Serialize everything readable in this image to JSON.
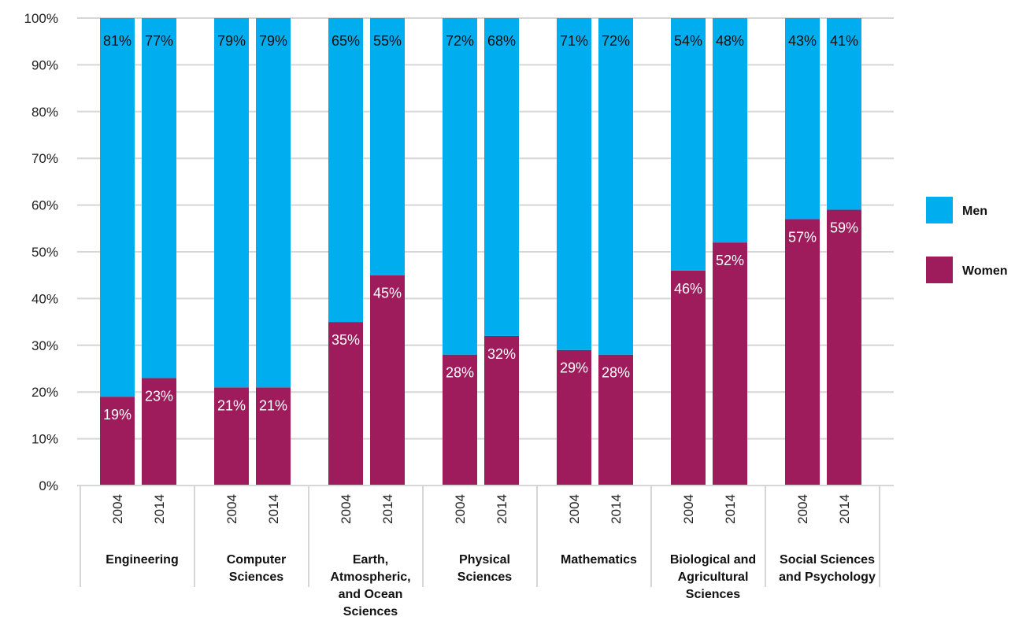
{
  "chart_data": {
    "type": "bar",
    "stacked": true,
    "normalized": true,
    "title": "",
    "xlabel": "",
    "ylabel": "",
    "ylim": [
      0,
      100
    ],
    "y_ticks": [
      "0%",
      "10%",
      "20%",
      "30%",
      "40%",
      "50%",
      "60%",
      "70%",
      "80%",
      "90%",
      "100%"
    ],
    "grid": "horizontal",
    "legend": {
      "position": "right",
      "entries": [
        {
          "name": "Men",
          "color": "#00aeef"
        },
        {
          "name": "Women",
          "color": "#9e1c5c"
        }
      ]
    },
    "groups": [
      {
        "name_lines": [
          "Engineering"
        ],
        "years": [
          "2004",
          "2014"
        ]
      },
      {
        "name_lines": [
          "Computer",
          "Sciences"
        ],
        "years": [
          "2004",
          "2014"
        ]
      },
      {
        "name_lines": [
          "Earth,",
          "Atmospheric,",
          "and Ocean",
          "Sciences"
        ],
        "years": [
          "2004",
          "2014"
        ]
      },
      {
        "name_lines": [
          "Physical",
          "Sciences"
        ],
        "years": [
          "2004",
          "2014"
        ]
      },
      {
        "name_lines": [
          "Mathematics"
        ],
        "years": [
          "2004",
          "2014"
        ]
      },
      {
        "name_lines": [
          "Biological and",
          "Agricultural",
          "Sciences"
        ],
        "years": [
          "2004",
          "2014"
        ]
      },
      {
        "name_lines": [
          "Social Sciences",
          "and Psychology"
        ],
        "years": [
          "2004",
          "2014"
        ]
      }
    ],
    "series": [
      {
        "name": "Women",
        "color": "#9e1c5c",
        "values": [
          19,
          23,
          21,
          21,
          35,
          45,
          28,
          32,
          29,
          28,
          46,
          52,
          57,
          59
        ],
        "labels": [
          "19%",
          "23%",
          "21%",
          "21%",
          "35%",
          "45%",
          "28%",
          "32%",
          "29%",
          "28%",
          "46%",
          "52%",
          "57%",
          "59%"
        ]
      },
      {
        "name": "Men",
        "color": "#00aeef",
        "values": [
          81,
          77,
          79,
          79,
          65,
          55,
          72,
          68,
          71,
          72,
          54,
          48,
          43,
          41
        ],
        "labels": [
          "81%",
          "77%",
          "79%",
          "79%",
          "65%",
          "55%",
          "72%",
          "68%",
          "71%",
          "72%",
          "54%",
          "48%",
          "43%",
          "41%"
        ]
      }
    ]
  }
}
